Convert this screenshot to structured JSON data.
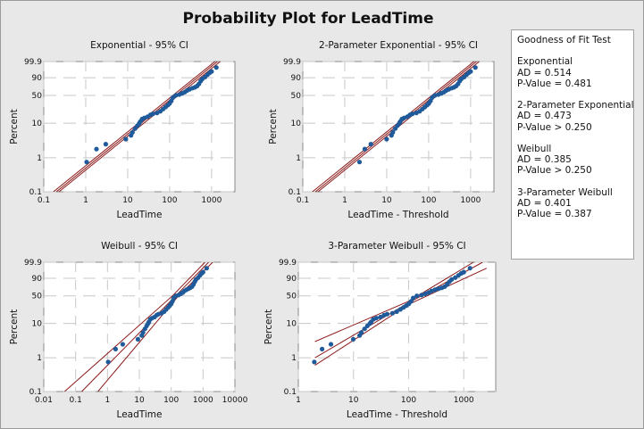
{
  "title": "Probability Plot for LeadTime",
  "colors": {
    "points": "#1f5a9a",
    "fit_lines": "#8b1a1a",
    "grid": "#c8c8c8",
    "background": "#e8e8e8",
    "plot_area": "#ffffff"
  },
  "legend": {
    "heading": "Goodness of Fit Test",
    "entries": [
      {
        "name": "Exponential",
        "ad": "AD = 0.514",
        "p": "P-Value = 0.481"
      },
      {
        "name": "2-Parameter Exponential",
        "ad": "AD = 0.473",
        "p": "P-Value > 0.250"
      },
      {
        "name": "Weibull",
        "ad": "AD = 0.385",
        "p": "P-Value > 0.250"
      },
      {
        "name": "3-Parameter Weibull",
        "ad": "AD = 0.401",
        "p": "P-Value = 0.387"
      }
    ]
  },
  "chart_data": [
    {
      "type": "scatter",
      "title": "Exponential - 95% CI",
      "xlabel": "LeadTime",
      "ylabel": "Percent",
      "xscale": "log",
      "yscale": "weibull-probability",
      "grid": true,
      "xlim": [
        0.1,
        3600
      ],
      "ylim": [
        0.1,
        99.9
      ],
      "xticks": [
        "0.1",
        "1",
        "10",
        "100",
        "1000"
      ],
      "yticks": [
        "0.1",
        "1",
        "10",
        "50",
        "90",
        "99.9"
      ],
      "points": [
        [
          1.05,
          0.75
        ],
        [
          1.8,
          1.8
        ],
        [
          3,
          2.5
        ],
        [
          9,
          3.5
        ],
        [
          12,
          4.5
        ],
        [
          13,
          5.5
        ],
        [
          15,
          7
        ],
        [
          17,
          8.5
        ],
        [
          19,
          10
        ],
        [
          20,
          11
        ],
        [
          22,
          13
        ],
        [
          25,
          14
        ],
        [
          30,
          15
        ],
        [
          35,
          17
        ],
        [
          40,
          18
        ],
        [
          50,
          19
        ],
        [
          60,
          21
        ],
        [
          70,
          24
        ],
        [
          80,
          27
        ],
        [
          90,
          30
        ],
        [
          100,
          33
        ],
        [
          110,
          38
        ],
        [
          120,
          45
        ],
        [
          140,
          50
        ],
        [
          170,
          52
        ],
        [
          200,
          55
        ],
        [
          230,
          58
        ],
        [
          260,
          62
        ],
        [
          300,
          65
        ],
        [
          350,
          68
        ],
        [
          400,
          70
        ],
        [
          450,
          73
        ],
        [
          500,
          78
        ],
        [
          550,
          84
        ],
        [
          600,
          88
        ],
        [
          700,
          91
        ],
        [
          800,
          94
        ],
        [
          900,
          96
        ],
        [
          1000,
          97
        ],
        [
          1300,
          99
        ]
      ],
      "fit_line": [
        [
          0.2,
          0.1
        ],
        [
          1380,
          99.9
        ]
      ],
      "ci_left": [
        [
          0.17,
          0.1
        ],
        [
          1200,
          99.9
        ]
      ],
      "ci_right": [
        [
          0.23,
          0.1
        ],
        [
          1600,
          99.9
        ]
      ]
    },
    {
      "type": "scatter",
      "title": "2-Parameter Exponential - 95% CI",
      "xlabel": "LeadTime - Threshold",
      "ylabel": "Percent",
      "xscale": "log",
      "yscale": "weibull-probability",
      "grid": true,
      "xlim": [
        0.1,
        3600
      ],
      "ylim": [
        0.1,
        99.9
      ],
      "xticks": [
        "0.1",
        "1",
        "10",
        "100",
        "1000"
      ],
      "yticks": [
        "0.1",
        "1",
        "10",
        "50",
        "90",
        "99.9"
      ],
      "points": [
        [
          2.25,
          0.75
        ],
        [
          3.0,
          1.8
        ],
        [
          4.2,
          2.5
        ],
        [
          10,
          3.5
        ],
        [
          13,
          4.5
        ],
        [
          14,
          5.5
        ],
        [
          16,
          7
        ],
        [
          18,
          8.5
        ],
        [
          20,
          10
        ],
        [
          21,
          11
        ],
        [
          23,
          13
        ],
        [
          26,
          14
        ],
        [
          31,
          15
        ],
        [
          36,
          17
        ],
        [
          41,
          18
        ],
        [
          51,
          19
        ],
        [
          61,
          21
        ],
        [
          71,
          24
        ],
        [
          81,
          27
        ],
        [
          91,
          30
        ],
        [
          101,
          33
        ],
        [
          111,
          38
        ],
        [
          121,
          45
        ],
        [
          141,
          50
        ],
        [
          171,
          52
        ],
        [
          201,
          55
        ],
        [
          231,
          58
        ],
        [
          261,
          62
        ],
        [
          301,
          65
        ],
        [
          351,
          68
        ],
        [
          401,
          70
        ],
        [
          451,
          73
        ],
        [
          501,
          78
        ],
        [
          551,
          84
        ],
        [
          601,
          88
        ],
        [
          701,
          91
        ],
        [
          801,
          94
        ],
        [
          901,
          96
        ],
        [
          1001,
          97
        ],
        [
          1300,
          99
        ]
      ],
      "fit_line": [
        [
          0.2,
          0.1
        ],
        [
          1380,
          99.9
        ]
      ],
      "ci_left": [
        [
          0.17,
          0.1
        ],
        [
          1200,
          99.9
        ]
      ],
      "ci_right": [
        [
          0.23,
          0.1
        ],
        [
          1600,
          99.9
        ]
      ]
    },
    {
      "type": "scatter",
      "title": "Weibull - 95% CI",
      "xlabel": "LeadTime",
      "ylabel": "Percent",
      "xscale": "log",
      "yscale": "weibull-probability",
      "grid": true,
      "xlim": [
        0.01,
        10000
      ],
      "ylim": [
        0.1,
        99.9
      ],
      "xticks": [
        "0.01",
        "0.1",
        "1",
        "10",
        "100",
        "1000",
        "10000"
      ],
      "yticks": [
        "0.1",
        "1",
        "10",
        "50",
        "90",
        "99.9"
      ],
      "points": [
        [
          1.05,
          0.75
        ],
        [
          1.8,
          1.8
        ],
        [
          3,
          2.5
        ],
        [
          9,
          3.5
        ],
        [
          12,
          4.5
        ],
        [
          13,
          5.5
        ],
        [
          15,
          7
        ],
        [
          17,
          8.5
        ],
        [
          19,
          10
        ],
        [
          20,
          11
        ],
        [
          22,
          13
        ],
        [
          25,
          14
        ],
        [
          30,
          15
        ],
        [
          35,
          17
        ],
        [
          40,
          18
        ],
        [
          50,
          19
        ],
        [
          60,
          21
        ],
        [
          70,
          24
        ],
        [
          80,
          27
        ],
        [
          90,
          30
        ],
        [
          100,
          33
        ],
        [
          110,
          38
        ],
        [
          120,
          45
        ],
        [
          140,
          50
        ],
        [
          170,
          52
        ],
        [
          200,
          55
        ],
        [
          230,
          58
        ],
        [
          260,
          62
        ],
        [
          300,
          65
        ],
        [
          350,
          68
        ],
        [
          400,
          70
        ],
        [
          450,
          73
        ],
        [
          500,
          78
        ],
        [
          550,
          84
        ],
        [
          600,
          88
        ],
        [
          700,
          91
        ],
        [
          800,
          94
        ],
        [
          900,
          96
        ],
        [
          1000,
          97
        ],
        [
          1300,
          99
        ]
      ],
      "fit_line": [
        [
          0.155,
          0.1
        ],
        [
          138,
          50
        ],
        [
          1500,
          99.9
        ]
      ],
      "ci_left": [
        [
          0.045,
          0.1
        ],
        [
          110,
          50
        ],
        [
          1150,
          99.9
        ]
      ],
      "ci_right": [
        [
          0.5,
          0.1
        ],
        [
          170,
          50
        ],
        [
          2000,
          99.9
        ]
      ]
    },
    {
      "type": "scatter",
      "title": "3-Parameter Weibull - 95% CI",
      "xlabel": "LeadTime - Threshold",
      "ylabel": "Percent",
      "xscale": "log",
      "yscale": "weibull-probability",
      "grid": true,
      "xlim": [
        1,
        3800
      ],
      "ylim": [
        0.1,
        99.9
      ],
      "xticks": [
        "1",
        "10",
        "100",
        "1000"
      ],
      "yticks": [
        "0.1",
        "1",
        "10",
        "50",
        "90",
        "99.9"
      ],
      "points": [
        [
          1.95,
          0.75
        ],
        [
          2.7,
          1.8
        ],
        [
          3.9,
          2.5
        ],
        [
          9.9,
          3.5
        ],
        [
          12.9,
          4.5
        ],
        [
          13.9,
          5.5
        ],
        [
          15.9,
          7
        ],
        [
          17.9,
          8.5
        ],
        [
          19.9,
          10
        ],
        [
          20.9,
          11
        ],
        [
          22.9,
          13
        ],
        [
          25.9,
          14
        ],
        [
          30.9,
          15
        ],
        [
          35.9,
          17
        ],
        [
          40.9,
          18
        ],
        [
          50.9,
          19
        ],
        [
          60.9,
          21
        ],
        [
          70.9,
          24
        ],
        [
          80.9,
          27
        ],
        [
          90.9,
          30
        ],
        [
          101,
          33
        ],
        [
          111,
          38
        ],
        [
          121,
          45
        ],
        [
          141,
          50
        ],
        [
          171,
          52
        ],
        [
          201,
          55
        ],
        [
          231,
          58
        ],
        [
          261,
          62
        ],
        [
          301,
          65
        ],
        [
          351,
          68
        ],
        [
          401,
          70
        ],
        [
          451,
          73
        ],
        [
          501,
          78
        ],
        [
          551,
          84
        ],
        [
          601,
          88
        ],
        [
          701,
          91
        ],
        [
          801,
          94
        ],
        [
          901,
          96
        ],
        [
          1001,
          97
        ],
        [
          1300,
          99
        ]
      ],
      "fit_line": [
        [
          2,
          1
        ],
        [
          100,
          35
        ],
        [
          2200,
          99.9
        ]
      ],
      "ci_left": [
        [
          2,
          3
        ],
        [
          100,
          38
        ],
        [
          1500,
          99.9
        ]
      ],
      "ci_right": [
        [
          2,
          0.6
        ],
        [
          100,
          32
        ],
        [
          2600,
          99
        ]
      ]
    }
  ]
}
